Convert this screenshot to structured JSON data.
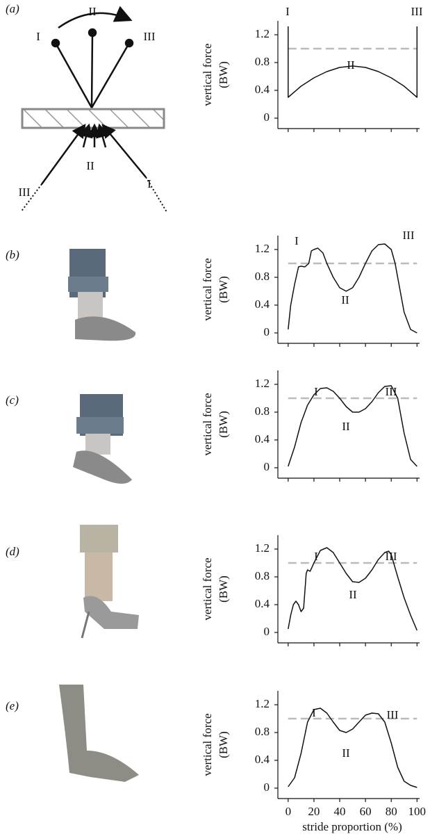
{
  "panels": [
    {
      "label": "(a)"
    },
    {
      "label": "(b)"
    },
    {
      "label": "(c)"
    },
    {
      "label": "(d)"
    },
    {
      "label": "(e)"
    }
  ],
  "diagram": {
    "labels": [
      "II",
      "I",
      "III",
      "II",
      "III",
      "I"
    ]
  },
  "chart_data": [
    {
      "type": "line",
      "ylabel": [
        "vertical force",
        "(BW)"
      ],
      "xlim": [
        -8,
        102
      ],
      "ylim": [
        -0.15,
        1.4
      ],
      "yticks": [
        0,
        0.4,
        0.8,
        1.2
      ],
      "xticks": [
        0,
        20,
        40,
        60,
        80,
        100
      ],
      "show_xtick_labels": false,
      "hline": 1,
      "hline_color": "#bbbbbb",
      "color": "#111111",
      "annotations": [
        "I",
        "III",
        "II"
      ],
      "x": [
        0,
        0,
        10,
        20,
        30,
        40,
        50,
        60,
        70,
        80,
        90,
        100,
        100
      ],
      "values": [
        1.32,
        0.3,
        0.46,
        0.58,
        0.67,
        0.73,
        0.75,
        0.73,
        0.67,
        0.58,
        0.46,
        0.3,
        1.32
      ]
    },
    {
      "type": "line",
      "ylabel": [
        "vertical force",
        "(BW)"
      ],
      "xlim": [
        -8,
        102
      ],
      "ylim": [
        -0.15,
        1.4
      ],
      "yticks": [
        0,
        0.4,
        0.8,
        1.2
      ],
      "xticks": [
        0,
        20,
        40,
        60,
        80,
        100
      ],
      "show_xtick_labels": false,
      "hline": 1,
      "hline_color": "#bbbbbb",
      "color": "#111111",
      "annotations": [
        "I",
        "III",
        "II"
      ],
      "x": [
        0,
        2,
        5,
        8,
        10,
        13,
        16,
        18,
        20,
        23,
        27,
        30,
        35,
        40,
        45,
        50,
        55,
        60,
        65,
        70,
        75,
        80,
        83,
        86,
        90,
        95,
        100
      ],
      "values": [
        0.05,
        0.4,
        0.7,
        0.95,
        0.96,
        0.95,
        1.0,
        1.18,
        1.2,
        1.22,
        1.15,
        1.0,
        0.8,
        0.65,
        0.6,
        0.65,
        0.8,
        1.0,
        1.18,
        1.27,
        1.28,
        1.2,
        1.0,
        0.7,
        0.3,
        0.05,
        0.0
      ]
    },
    {
      "type": "line",
      "ylabel": [
        "vertical force",
        "(BW)"
      ],
      "xlim": [
        -8,
        102
      ],
      "ylim": [
        -0.15,
        1.4
      ],
      "yticks": [
        0,
        0.4,
        0.8,
        1.2
      ],
      "xticks": [
        0,
        20,
        40,
        60,
        80,
        100
      ],
      "show_xtick_labels": false,
      "hline": 1,
      "hline_color": "#bbbbbb",
      "color": "#111111",
      "annotations": [
        "I",
        "III",
        "II"
      ],
      "x": [
        0,
        5,
        10,
        15,
        20,
        25,
        30,
        35,
        40,
        45,
        50,
        55,
        60,
        65,
        70,
        75,
        80,
        85,
        90,
        95,
        100
      ],
      "values": [
        0.02,
        0.3,
        0.65,
        0.9,
        1.05,
        1.14,
        1.15,
        1.1,
        1.0,
        0.88,
        0.8,
        0.8,
        0.85,
        0.95,
        1.08,
        1.17,
        1.18,
        1.0,
        0.5,
        0.12,
        0.02
      ]
    },
    {
      "type": "line",
      "ylabel": [
        "vertical force",
        "(BW)"
      ],
      "xlim": [
        -8,
        102
      ],
      "ylim": [
        -0.15,
        1.4
      ],
      "yticks": [
        0,
        0.4,
        0.8,
        1.2
      ],
      "xticks": [
        0,
        20,
        40,
        60,
        80,
        100
      ],
      "show_xtick_labels": false,
      "hline": 1,
      "hline_color": "#bbbbbb",
      "color": "#111111",
      "annotations": [
        "I",
        "III",
        "II"
      ],
      "x": [
        0,
        2,
        4,
        6,
        8,
        10,
        12,
        14,
        15,
        17,
        20,
        25,
        30,
        35,
        40,
        45,
        50,
        55,
        60,
        65,
        70,
        75,
        78,
        80,
        85,
        90,
        95,
        100
      ],
      "values": [
        0.05,
        0.25,
        0.4,
        0.45,
        0.4,
        0.3,
        0.35,
        0.85,
        0.9,
        0.88,
        1.0,
        1.18,
        1.22,
        1.15,
        1.0,
        0.85,
        0.73,
        0.72,
        0.78,
        0.9,
        1.05,
        1.15,
        1.17,
        1.12,
        0.8,
        0.5,
        0.25,
        0.03
      ]
    },
    {
      "type": "line",
      "ylabel": [
        "vertical force",
        "(BW)"
      ],
      "xlabel": "stride proportion (%)",
      "xlim": [
        -8,
        102
      ],
      "ylim": [
        -0.15,
        1.4
      ],
      "yticks": [
        0,
        0.4,
        0.8,
        1.2
      ],
      "xticks": [
        0,
        20,
        40,
        60,
        80,
        100
      ],
      "show_xtick_labels": true,
      "hline": 1,
      "hline_color": "#bbbbbb",
      "color": "#111111",
      "annotations": [
        "I",
        "III",
        "II"
      ],
      "x": [
        0,
        5,
        10,
        15,
        20,
        25,
        30,
        35,
        40,
        45,
        50,
        55,
        60,
        65,
        70,
        75,
        80,
        85,
        90,
        95,
        100
      ],
      "values": [
        0.02,
        0.15,
        0.5,
        0.95,
        1.13,
        1.15,
        1.08,
        0.95,
        0.83,
        0.8,
        0.85,
        0.95,
        1.05,
        1.08,
        1.07,
        0.95,
        0.65,
        0.3,
        0.1,
        0.04,
        0.01
      ]
    }
  ]
}
